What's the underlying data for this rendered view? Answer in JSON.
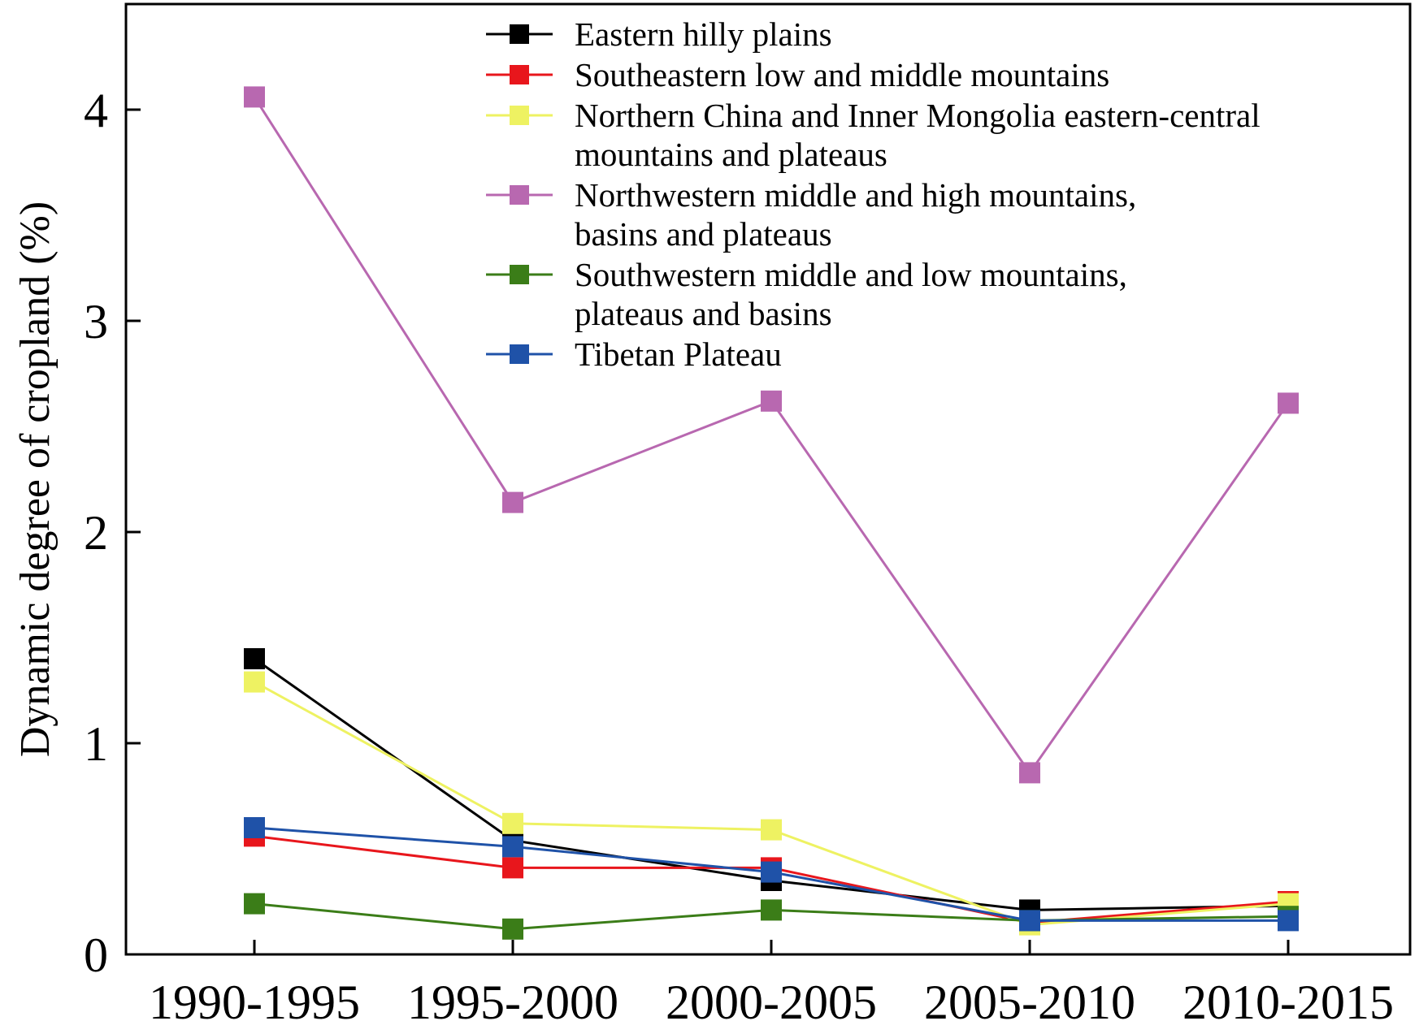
{
  "chart_data": {
    "type": "line",
    "title": "",
    "xlabel": "",
    "ylabel": "Dynamic degree of cropland (%)",
    "categories": [
      "1990-1995",
      "1995-2000",
      "2000-2005",
      "2005-2010",
      "2010-2015"
    ],
    "ylim": [
      0,
      4.5
    ],
    "yticks": [
      0,
      1,
      2,
      3,
      4
    ],
    "grid": false,
    "legend_position": "top-right",
    "series": [
      {
        "name": "Eastern hilly plains",
        "name_lines": [
          "Eastern hilly plains"
        ],
        "color": "#000000",
        "values": [
          1.4,
          0.54,
          0.35,
          0.21,
          0.23
        ]
      },
      {
        "name": "Southeastern low and middle mountains",
        "name_lines": [
          "Southeastern low and middle mountains"
        ],
        "color": "#e8161c",
        "values": [
          0.56,
          0.41,
          0.41,
          0.15,
          0.25
        ]
      },
      {
        "name": "Northern China and Inner Mongolia eastern-central mountains and plateaus",
        "name_lines": [
          "Northern China and Inner Mongolia eastern-central",
          "mountains and plateaus"
        ],
        "color": "#eef262",
        "values": [
          1.29,
          0.62,
          0.59,
          0.14,
          0.24
        ]
      },
      {
        "name": "Northwestern middle and high mountains, basins and plateaus",
        "name_lines": [
          "Northwestern middle and high mountains,",
          "basins and plateaus"
        ],
        "color": "#b868b0",
        "values": [
          4.06,
          2.14,
          2.62,
          0.86,
          2.61
        ]
      },
      {
        "name": "Southwestern middle and low mountains, plateaus and basins",
        "name_lines": [
          "Southwestern middle and low mountains,",
          "plateaus and basins"
        ],
        "color": "#3b7d18",
        "values": [
          0.24,
          0.12,
          0.21,
          0.16,
          0.18
        ]
      },
      {
        "name": "Tibetan Plateau",
        "name_lines": [
          "Tibetan Plateau"
        ],
        "color": "#1f52a8",
        "values": [
          0.6,
          0.51,
          0.39,
          0.16,
          0.16
        ]
      }
    ]
  }
}
